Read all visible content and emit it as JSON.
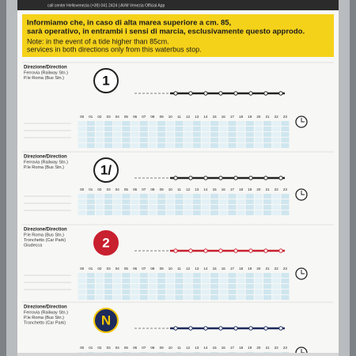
{
  "header": {
    "contact": "call center Hellovenezia (+39) 041 2424 | AVM Venezia Official App"
  },
  "notice": {
    "italian": [
      "Informiamo che, in caso di alta marea superiore a cm. 85,",
      "sarà operativo, in entrambi i sensi di marcia, esclusivamente questo approdo."
    ],
    "english": [
      "Note: in the event of a tide higher than 85cm.",
      "services in both directions only from this waterbus stop."
    ]
  },
  "hours": [
    "00",
    "01",
    "02",
    "03",
    "04",
    "05",
    "06",
    "07",
    "08",
    "09",
    "10",
    "11",
    "12",
    "13",
    "14",
    "15",
    "16",
    "17",
    "18",
    "19",
    "20",
    "21",
    "22",
    "23"
  ],
  "sections": [
    {
      "direction_label": "Direzione/Direction",
      "destinations": [
        "Ferrovia (Railway Stn.)",
        "P.le Roma (Bus Stn.)"
      ],
      "line": "1"
    },
    {
      "direction_label": "Direzione/Direction",
      "destinations": [
        "Ferrovia (Railway Stn.)",
        "P.le Roma (Bus Stn.)"
      ],
      "line": "1/"
    },
    {
      "direction_label": "Direzione/Direction",
      "destinations": [
        "P.le Roma (Bus Stn.)",
        "Tronchetto (Car Park)",
        "Giudecca"
      ],
      "line": "2"
    },
    {
      "direction_label": "Direzione/Direction",
      "destinations": [
        "Ferrovia (Railway Stn.)",
        "P.le Roma (Bus Stn.)",
        "Tronchetto (Car Park)"
      ],
      "line": "N"
    }
  ]
}
